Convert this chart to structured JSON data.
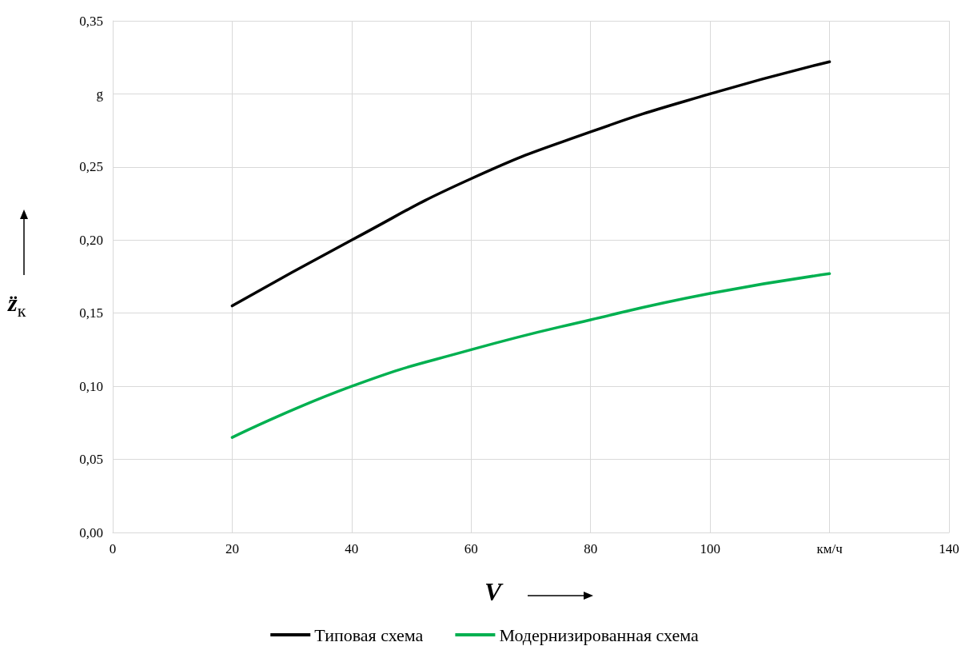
{
  "chart_data": {
    "type": "line",
    "xlabel": "V",
    "ylabel": "z̈$_{к}$",
    "x": [
      20,
      40,
      60,
      80,
      100,
      120
    ],
    "series": [
      {
        "name": "Типовая схема",
        "color": "#000000",
        "values": [
          0.155,
          0.2,
          0.242,
          0.274,
          0.3,
          0.322
        ]
      },
      {
        "name": "Модернизированная схема",
        "color": "#00b050",
        "values": [
          0.065,
          0.1,
          0.125,
          0.1455,
          0.1635,
          0.177
        ]
      }
    ],
    "xlim": [
      0,
      140
    ],
    "xticks": [
      0,
      20,
      40,
      60,
      80,
      100,
      {
        "value": 120,
        "label": "км/ч"
      },
      140
    ],
    "ylim": [
      0,
      0.35
    ],
    "yticks": [
      {
        "value": 0,
        "label": "0,00"
      },
      {
        "value": 0.05,
        "label": "0,05"
      },
      {
        "value": 0.1,
        "label": "0,10"
      },
      {
        "value": 0.15,
        "label": "0,15"
      },
      {
        "value": 0.2,
        "label": "0,20"
      },
      {
        "value": 0.25,
        "label": "0,25"
      },
      {
        "value": 0.3,
        "label": "g"
      },
      {
        "value": 0.35,
        "label": "0,35"
      }
    ],
    "grid": true,
    "legend": "bottom",
    "marker": "none",
    "line_style": "solid"
  }
}
